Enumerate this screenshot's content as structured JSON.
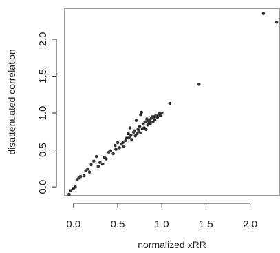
{
  "chart_data": {
    "type": "scatter",
    "title": "",
    "xlabel": "normalized xRR",
    "ylabel": "disattenuated correlation",
    "xlim": [
      -0.1,
      2.33
    ],
    "ylim": [
      -0.12,
      2.42
    ],
    "x_ticks": [
      "0.0",
      "0.5",
      "1.0",
      "1.5",
      "2.0"
    ],
    "y_ticks": [
      "0.0",
      "0.5",
      "1.0",
      "1.5",
      "2.0"
    ],
    "grid": false,
    "legend": "none",
    "point_color": "#333333",
    "points": [
      {
        "x": -0.05,
        "y": -0.1
      },
      {
        "x": -0.03,
        "y": -0.05
      },
      {
        "x": 0.0,
        "y": -0.02
      },
      {
        "x": 0.02,
        "y": 0.0
      },
      {
        "x": 0.04,
        "y": 0.1
      },
      {
        "x": 0.06,
        "y": 0.12
      },
      {
        "x": 0.08,
        "y": 0.14
      },
      {
        "x": 0.12,
        "y": 0.15
      },
      {
        "x": 0.14,
        "y": 0.22
      },
      {
        "x": 0.16,
        "y": 0.24
      },
      {
        "x": 0.18,
        "y": 0.2
      },
      {
        "x": 0.2,
        "y": 0.3
      },
      {
        "x": 0.23,
        "y": 0.35
      },
      {
        "x": 0.26,
        "y": 0.41
      },
      {
        "x": 0.28,
        "y": 0.28
      },
      {
        "x": 0.3,
        "y": 0.33
      },
      {
        "x": 0.33,
        "y": 0.31
      },
      {
        "x": 0.35,
        "y": 0.4
      },
      {
        "x": 0.37,
        "y": 0.38
      },
      {
        "x": 0.4,
        "y": 0.47
      },
      {
        "x": 0.42,
        "y": 0.49
      },
      {
        "x": 0.45,
        "y": 0.45
      },
      {
        "x": 0.47,
        "y": 0.56
      },
      {
        "x": 0.48,
        "y": 0.51
      },
      {
        "x": 0.5,
        "y": 0.6
      },
      {
        "x": 0.52,
        "y": 0.53
      },
      {
        "x": 0.54,
        "y": 0.58
      },
      {
        "x": 0.56,
        "y": 0.6
      },
      {
        "x": 0.57,
        "y": 0.55
      },
      {
        "x": 0.59,
        "y": 0.63
      },
      {
        "x": 0.6,
        "y": 0.66
      },
      {
        "x": 0.62,
        "y": 0.72
      },
      {
        "x": 0.63,
        "y": 0.67
      },
      {
        "x": 0.64,
        "y": 0.8
      },
      {
        "x": 0.65,
        "y": 0.7
      },
      {
        "x": 0.66,
        "y": 0.64
      },
      {
        "x": 0.68,
        "y": 0.74
      },
      {
        "x": 0.69,
        "y": 0.76
      },
      {
        "x": 0.7,
        "y": 0.69
      },
      {
        "x": 0.71,
        "y": 0.9
      },
      {
        "x": 0.72,
        "y": 0.72
      },
      {
        "x": 0.73,
        "y": 0.78
      },
      {
        "x": 0.74,
        "y": 0.75
      },
      {
        "x": 0.75,
        "y": 0.82
      },
      {
        "x": 0.76,
        "y": 0.73
      },
      {
        "x": 0.76,
        "y": 0.98
      },
      {
        "x": 0.77,
        "y": 1.01
      },
      {
        "x": 0.78,
        "y": 0.79
      },
      {
        "x": 0.79,
        "y": 0.85
      },
      {
        "x": 0.8,
        "y": 0.8
      },
      {
        "x": 0.81,
        "y": 0.88
      },
      {
        "x": 0.82,
        "y": 0.78
      },
      {
        "x": 0.83,
        "y": 0.92
      },
      {
        "x": 0.84,
        "y": 0.84
      },
      {
        "x": 0.85,
        "y": 0.89
      },
      {
        "x": 0.86,
        "y": 0.9
      },
      {
        "x": 0.87,
        "y": 0.86
      },
      {
        "x": 0.88,
        "y": 0.93
      },
      {
        "x": 0.89,
        "y": 0.95
      },
      {
        "x": 0.9,
        "y": 0.88
      },
      {
        "x": 0.91,
        "y": 0.95
      },
      {
        "x": 0.92,
        "y": 0.91
      },
      {
        "x": 0.93,
        "y": 0.96
      },
      {
        "x": 0.95,
        "y": 0.94
      },
      {
        "x": 0.96,
        "y": 0.97
      },
      {
        "x": 0.97,
        "y": 0.99
      },
      {
        "x": 0.99,
        "y": 0.97
      },
      {
        "x": 1.0,
        "y": 1.0
      },
      {
        "x": 1.09,
        "y": 1.13
      },
      {
        "x": 1.42,
        "y": 1.39
      },
      {
        "x": 2.15,
        "y": 2.35
      },
      {
        "x": 2.3,
        "y": 2.23
      }
    ]
  }
}
